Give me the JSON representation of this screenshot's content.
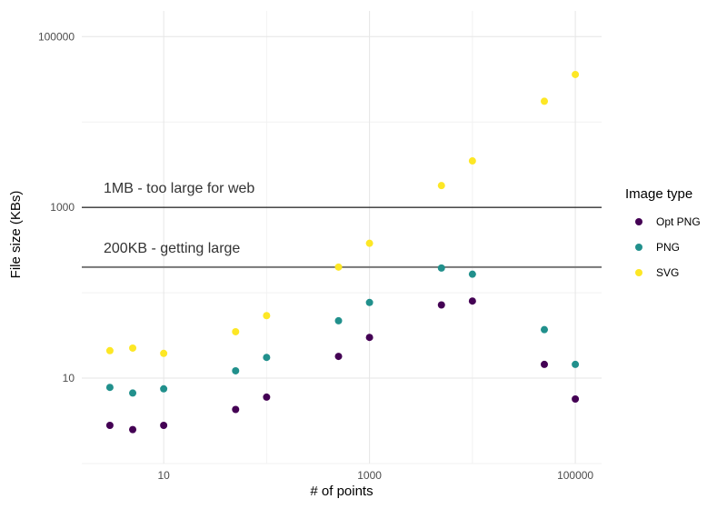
{
  "chart_data": {
    "type": "scatter",
    "title": "",
    "xlabel": "# of points",
    "ylabel": "File size (KBs)",
    "x_scale": "log10",
    "y_scale": "log10",
    "xlim": [
      1.6,
      180000
    ],
    "ylim": [
      1,
      200000
    ],
    "x_ticks": [
      10,
      1000,
      100000
    ],
    "x_tick_labels": [
      "10",
      "1000",
      "100000"
    ],
    "y_ticks": [
      10,
      1000,
      100000
    ],
    "y_tick_labels": [
      "10",
      "1000",
      "100000"
    ],
    "grid": true,
    "legend": {
      "title": "Image type",
      "placement": "right",
      "entries": [
        "Opt PNG",
        "PNG",
        "SVG"
      ]
    },
    "reference_lines": [
      {
        "y": 1000,
        "label": "1MB - too large for web",
        "color": "#333333"
      },
      {
        "y": 200,
        "label": "200KB - getting large",
        "color": "#777777"
      }
    ],
    "series": [
      {
        "name": "Opt PNG",
        "color": "#440154",
        "points": [
          [
            3,
            2.8
          ],
          [
            5,
            2.5
          ],
          [
            10,
            2.8
          ],
          [
            50,
            4.3
          ],
          [
            100,
            6.0
          ],
          [
            500,
            18
          ],
          [
            1000,
            30
          ],
          [
            5000,
            72
          ],
          [
            10000,
            80
          ],
          [
            50000,
            14.5
          ],
          [
            100000,
            5.7
          ]
        ]
      },
      {
        "name": "PNG",
        "color": "#21908C",
        "points": [
          [
            3,
            7.8
          ],
          [
            5,
            6.7
          ],
          [
            10,
            7.5
          ],
          [
            50,
            12.2
          ],
          [
            100,
            17.5
          ],
          [
            500,
            47
          ],
          [
            1000,
            77
          ],
          [
            5000,
            195
          ],
          [
            10000,
            165
          ],
          [
            50000,
            37
          ],
          [
            100000,
            14.5
          ]
        ]
      },
      {
        "name": "SVG",
        "color": "#FDE725",
        "points": [
          [
            3,
            21
          ],
          [
            5,
            22.5
          ],
          [
            10,
            19.5
          ],
          [
            50,
            35
          ],
          [
            100,
            54
          ],
          [
            500,
            200
          ],
          [
            1000,
            380
          ],
          [
            5000,
            1800
          ],
          [
            10000,
            3500
          ],
          [
            50000,
            17500
          ],
          [
            100000,
            36000
          ]
        ]
      }
    ]
  }
}
